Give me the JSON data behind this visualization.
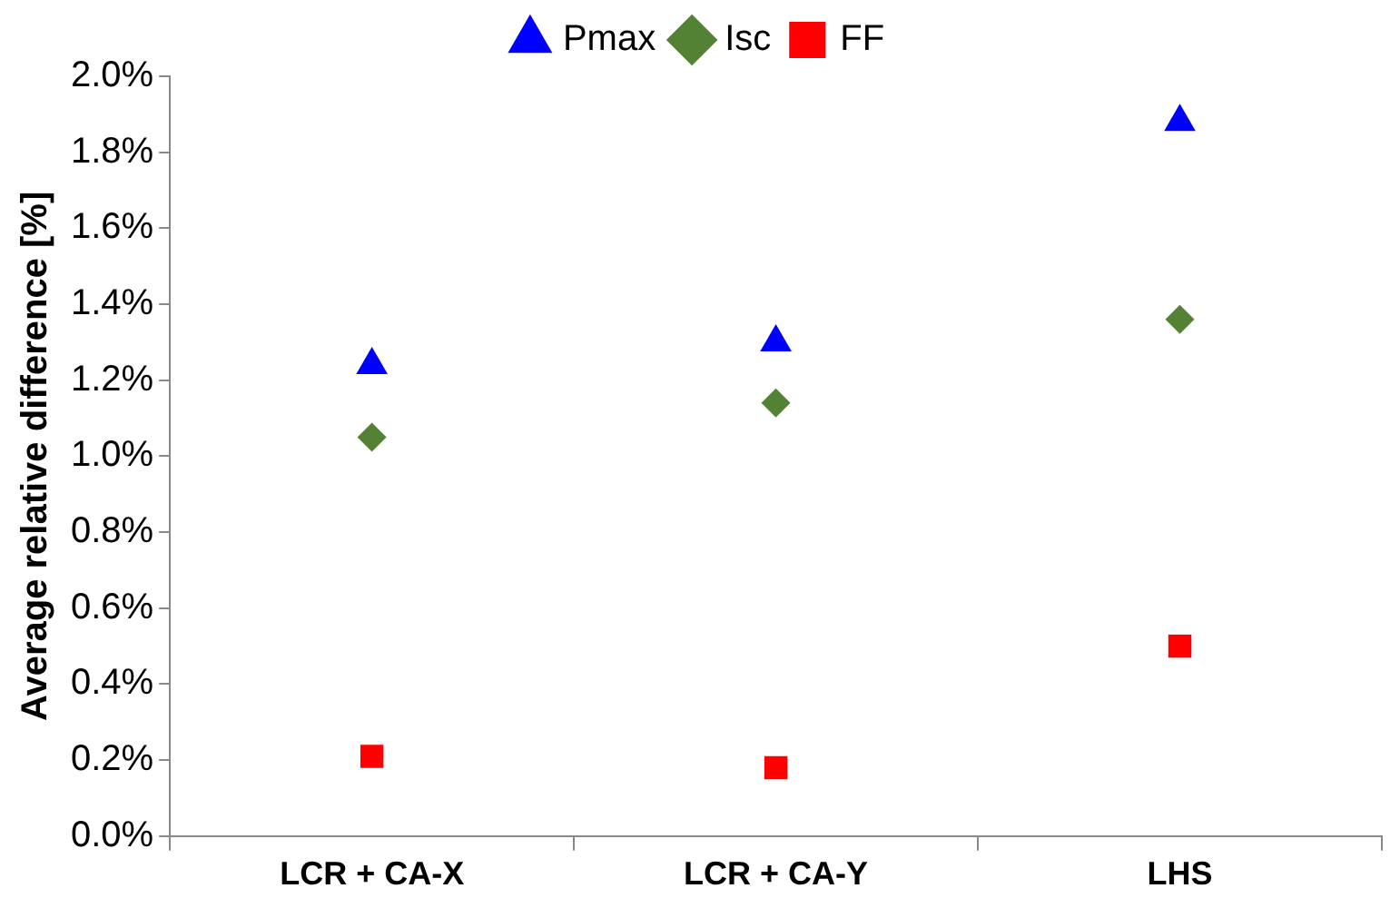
{
  "chart_data": {
    "type": "scatter",
    "ylabel": "Average relative difference [%]",
    "categories": [
      "LCR + CA-X",
      "LCR + CA-Y",
      "LHS"
    ],
    "series": [
      {
        "name": "Pmax",
        "color": "#0000ff",
        "marker": "triangle",
        "values": [
          1.24,
          1.3,
          1.88
        ]
      },
      {
        "name": "Isc",
        "color": "#548235",
        "marker": "diamond",
        "values": [
          1.05,
          1.14,
          1.36
        ]
      },
      {
        "name": "FF",
        "color": "#ff0000",
        "marker": "square",
        "values": [
          0.21,
          0.18,
          0.5
        ]
      }
    ],
    "ylim": [
      0,
      2
    ],
    "yticks": [
      {
        "value": 0,
        "label": "0.0%"
      },
      {
        "value": 0.2,
        "label": "0.2%"
      },
      {
        "value": 0.4,
        "label": "0.4%"
      },
      {
        "value": 0.6,
        "label": "0.6%"
      },
      {
        "value": 0.8,
        "label": "0.8%"
      },
      {
        "value": 1,
        "label": "1.0%"
      },
      {
        "value": 1.2,
        "label": "1.2%"
      },
      {
        "value": 1.4,
        "label": "1.4%"
      },
      {
        "value": 1.6,
        "label": "1.6%"
      },
      {
        "value": 1.8,
        "label": "1.8%"
      },
      {
        "value": 2,
        "label": "2.0%"
      }
    ],
    "grid": false,
    "legend": "top"
  }
}
